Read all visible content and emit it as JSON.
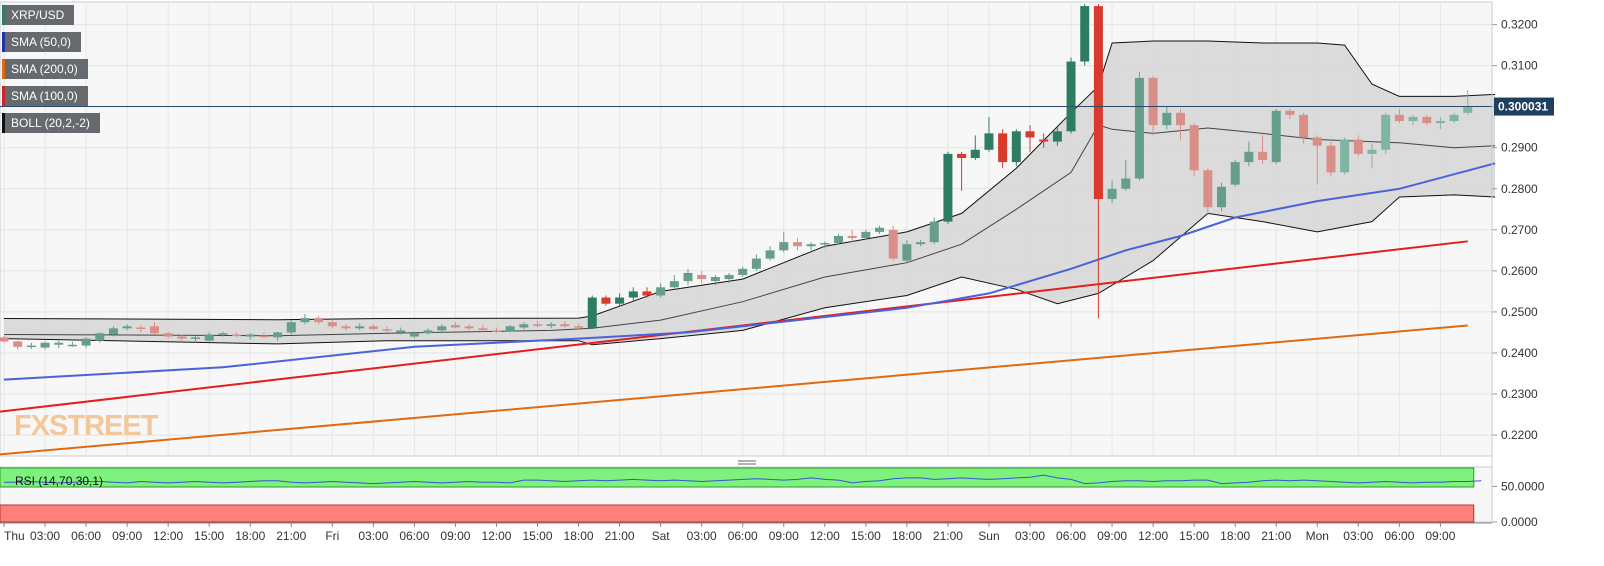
{
  "legend": [
    {
      "label": "XRP/USD",
      "color": "#2e7d63"
    },
    {
      "label": "SMA (50,0)",
      "color": "#2233aa"
    },
    {
      "label": "SMA (200,0)",
      "color": "#e06a10"
    },
    {
      "label": "SMA (100,0)",
      "color": "#d32222"
    },
    {
      "label": "BOLL (20,2,-2)",
      "color": "#111111"
    }
  ],
  "rsi_panel": {
    "label": "RSI (14,70,30,1)",
    "axis_labels": [
      "50.0000",
      "0.0000"
    ],
    "values": [
      56,
      56,
      57,
      56,
      55,
      56,
      57,
      57,
      56,
      55,
      57,
      56,
      55,
      56,
      57,
      56,
      55,
      56,
      57,
      58,
      58,
      56,
      55,
      56,
      57,
      56,
      55,
      54,
      55,
      56,
      57,
      56,
      55,
      56,
      57,
      56,
      56,
      55,
      59,
      59,
      58,
      57,
      58,
      59,
      58,
      59,
      60,
      59,
      58,
      59,
      58,
      57,
      58,
      59,
      60,
      61,
      60,
      59,
      60,
      62,
      60,
      59,
      55,
      57,
      58,
      61,
      62,
      62,
      60,
      61,
      62,
      61,
      60,
      61,
      62,
      63,
      66,
      62,
      60,
      54,
      55,
      57,
      58,
      58,
      57,
      58,
      58,
      59,
      59,
      54,
      55,
      56,
      58,
      59,
      58,
      59,
      58,
      57,
      56,
      55,
      56,
      57,
      56,
      55,
      56,
      56,
      57,
      57,
      58
    ]
  },
  "chart_data": {
    "type": "candlestick",
    "title": "XRP/USD",
    "source_watermark": "FXSTREET",
    "y_ticks": [
      "0.3200",
      "0.3100",
      "0.3000",
      "0.2900",
      "0.2800",
      "0.2700",
      "0.2600",
      "0.2500",
      "0.2400",
      "0.2300",
      "0.2200"
    ],
    "ylim": [
      0.2149,
      0.3255
    ],
    "x_tick_labels": [
      "Thu",
      "03:00",
      "06:00",
      "09:00",
      "12:00",
      "15:00",
      "18:00",
      "21:00",
      "Fri",
      "03:00",
      "06:00",
      "09:00",
      "12:00",
      "15:00",
      "18:00",
      "21:00",
      "Sat",
      "03:00",
      "06:00",
      "09:00",
      "12:00",
      "15:00",
      "18:00",
      "21:00",
      "Sun",
      "03:00",
      "06:00",
      "09:00",
      "12:00",
      "15:00",
      "18:00",
      "21:00",
      "Mon",
      "03:00",
      "06:00",
      "09:00"
    ],
    "x_tick_interval_bars": 3,
    "bar_interval": "1 hour",
    "current_price": {
      "label": "0.300031",
      "value": 0.300031
    },
    "candles": [
      {
        "open": 0.2438,
        "high": 0.2442,
        "low": 0.2425,
        "close": 0.2428
      },
      {
        "open": 0.2428,
        "high": 0.243,
        "low": 0.2408,
        "close": 0.2415
      },
      {
        "open": 0.2415,
        "high": 0.2425,
        "low": 0.241,
        "close": 0.2418
      },
      {
        "open": 0.2413,
        "high": 0.2428,
        "low": 0.2408,
        "close": 0.2425
      },
      {
        "open": 0.242,
        "high": 0.243,
        "low": 0.2412,
        "close": 0.2425
      },
      {
        "open": 0.2418,
        "high": 0.2428,
        "low": 0.2415,
        "close": 0.242
      },
      {
        "open": 0.2418,
        "high": 0.2438,
        "low": 0.2412,
        "close": 0.2435
      },
      {
        "open": 0.243,
        "high": 0.245,
        "low": 0.2425,
        "close": 0.2448
      },
      {
        "open": 0.2445,
        "high": 0.2465,
        "low": 0.244,
        "close": 0.246
      },
      {
        "open": 0.246,
        "high": 0.247,
        "low": 0.2455,
        "close": 0.2465
      },
      {
        "open": 0.2462,
        "high": 0.2468,
        "low": 0.245,
        "close": 0.246
      },
      {
        "open": 0.2465,
        "high": 0.2475,
        "low": 0.2445,
        "close": 0.2448
      },
      {
        "open": 0.2448,
        "high": 0.2452,
        "low": 0.2435,
        "close": 0.244
      },
      {
        "open": 0.244,
        "high": 0.2445,
        "low": 0.243,
        "close": 0.2435
      },
      {
        "open": 0.2435,
        "high": 0.2442,
        "low": 0.2425,
        "close": 0.2438
      },
      {
        "open": 0.243,
        "high": 0.245,
        "low": 0.2428,
        "close": 0.2445
      },
      {
        "open": 0.2445,
        "high": 0.2452,
        "low": 0.244,
        "close": 0.2448
      },
      {
        "open": 0.2445,
        "high": 0.245,
        "low": 0.2438,
        "close": 0.2442
      },
      {
        "open": 0.244,
        "high": 0.2448,
        "low": 0.2432,
        "close": 0.2445
      },
      {
        "open": 0.2442,
        "high": 0.245,
        "low": 0.2436,
        "close": 0.244
      },
      {
        "open": 0.2438,
        "high": 0.2452,
        "low": 0.243,
        "close": 0.245
      },
      {
        "open": 0.245,
        "high": 0.248,
        "low": 0.2445,
        "close": 0.2475
      },
      {
        "open": 0.2475,
        "high": 0.2495,
        "low": 0.247,
        "close": 0.2485
      },
      {
        "open": 0.2485,
        "high": 0.249,
        "low": 0.247,
        "close": 0.2475
      },
      {
        "open": 0.2475,
        "high": 0.2482,
        "low": 0.246,
        "close": 0.2465
      },
      {
        "open": 0.2465,
        "high": 0.247,
        "low": 0.2455,
        "close": 0.246
      },
      {
        "open": 0.246,
        "high": 0.2472,
        "low": 0.2455,
        "close": 0.2465
      },
      {
        "open": 0.2465,
        "high": 0.247,
        "low": 0.2455,
        "close": 0.2458
      },
      {
        "open": 0.2458,
        "high": 0.2465,
        "low": 0.245,
        "close": 0.2455
      },
      {
        "open": 0.245,
        "high": 0.2462,
        "low": 0.2445,
        "close": 0.2455
      },
      {
        "open": 0.244,
        "high": 0.2452,
        "low": 0.2435,
        "close": 0.2448
      },
      {
        "open": 0.2448,
        "high": 0.246,
        "low": 0.2445,
        "close": 0.2455
      },
      {
        "open": 0.2455,
        "high": 0.247,
        "low": 0.245,
        "close": 0.2465
      },
      {
        "open": 0.2468,
        "high": 0.2475,
        "low": 0.246,
        "close": 0.2462
      },
      {
        "open": 0.2465,
        "high": 0.247,
        "low": 0.2455,
        "close": 0.246
      },
      {
        "open": 0.246,
        "high": 0.2468,
        "low": 0.2452,
        "close": 0.2456
      },
      {
        "open": 0.2455,
        "high": 0.2462,
        "low": 0.2448,
        "close": 0.2452
      },
      {
        "open": 0.2452,
        "high": 0.2468,
        "low": 0.245,
        "close": 0.2465
      },
      {
        "open": 0.2462,
        "high": 0.2475,
        "low": 0.2458,
        "close": 0.247
      },
      {
        "open": 0.247,
        "high": 0.2478,
        "low": 0.2462,
        "close": 0.2466
      },
      {
        "open": 0.2466,
        "high": 0.2475,
        "low": 0.246,
        "close": 0.247
      },
      {
        "open": 0.247,
        "high": 0.2478,
        "low": 0.2462,
        "close": 0.2465
      },
      {
        "open": 0.2465,
        "high": 0.2472,
        "low": 0.2458,
        "close": 0.2462
      },
      {
        "open": 0.246,
        "high": 0.254,
        "low": 0.2458,
        "close": 0.2535
      },
      {
        "open": 0.2535,
        "high": 0.254,
        "low": 0.2515,
        "close": 0.252
      },
      {
        "open": 0.252,
        "high": 0.2545,
        "low": 0.2515,
        "close": 0.2535
      },
      {
        "open": 0.2535,
        "high": 0.256,
        "low": 0.2525,
        "close": 0.255
      },
      {
        "open": 0.255,
        "high": 0.256,
        "low": 0.2535,
        "close": 0.254
      },
      {
        "open": 0.254,
        "high": 0.257,
        "low": 0.2535,
        "close": 0.256
      },
      {
        "open": 0.256,
        "high": 0.259,
        "low": 0.2555,
        "close": 0.2575
      },
      {
        "open": 0.2575,
        "high": 0.2605,
        "low": 0.2565,
        "close": 0.2595
      },
      {
        "open": 0.259,
        "high": 0.26,
        "low": 0.257,
        "close": 0.258
      },
      {
        "open": 0.2575,
        "high": 0.259,
        "low": 0.2565,
        "close": 0.2585
      },
      {
        "open": 0.258,
        "high": 0.2595,
        "low": 0.257,
        "close": 0.259
      },
      {
        "open": 0.259,
        "high": 0.261,
        "low": 0.2585,
        "close": 0.2605
      },
      {
        "open": 0.2605,
        "high": 0.264,
        "low": 0.26,
        "close": 0.263
      },
      {
        "open": 0.263,
        "high": 0.266,
        "low": 0.2625,
        "close": 0.265
      },
      {
        "open": 0.265,
        "high": 0.2695,
        "low": 0.2645,
        "close": 0.267
      },
      {
        "open": 0.267,
        "high": 0.268,
        "low": 0.265,
        "close": 0.266
      },
      {
        "open": 0.266,
        "high": 0.267,
        "low": 0.265,
        "close": 0.2665
      },
      {
        "open": 0.2665,
        "high": 0.2672,
        "low": 0.2655,
        "close": 0.2668
      },
      {
        "open": 0.2668,
        "high": 0.269,
        "low": 0.2665,
        "close": 0.2685
      },
      {
        "open": 0.2685,
        "high": 0.27,
        "low": 0.267,
        "close": 0.268
      },
      {
        "open": 0.268,
        "high": 0.27,
        "low": 0.2675,
        "close": 0.2695
      },
      {
        "open": 0.2695,
        "high": 0.271,
        "low": 0.269,
        "close": 0.2705
      },
      {
        "open": 0.27,
        "high": 0.271,
        "low": 0.2625,
        "close": 0.263
      },
      {
        "open": 0.2625,
        "high": 0.2675,
        "low": 0.262,
        "close": 0.2665
      },
      {
        "open": 0.2665,
        "high": 0.2675,
        "low": 0.266,
        "close": 0.267
      },
      {
        "open": 0.267,
        "high": 0.273,
        "low": 0.2665,
        "close": 0.272
      },
      {
        "open": 0.272,
        "high": 0.289,
        "low": 0.2715,
        "close": 0.2885
      },
      {
        "open": 0.2885,
        "high": 0.289,
        "low": 0.2795,
        "close": 0.2875
      },
      {
        "open": 0.2875,
        "high": 0.293,
        "low": 0.287,
        "close": 0.2895
      },
      {
        "open": 0.2895,
        "high": 0.2975,
        "low": 0.289,
        "close": 0.2935
      },
      {
        "open": 0.2935,
        "high": 0.2945,
        "low": 0.285,
        "close": 0.2865
      },
      {
        "open": 0.2865,
        "high": 0.2945,
        "low": 0.2855,
        "close": 0.294
      },
      {
        "open": 0.294,
        "high": 0.2955,
        "low": 0.289,
        "close": 0.2925
      },
      {
        "open": 0.292,
        "high": 0.2935,
        "low": 0.29,
        "close": 0.2915
      },
      {
        "open": 0.2915,
        "high": 0.295,
        "low": 0.2905,
        "close": 0.294
      },
      {
        "open": 0.294,
        "high": 0.312,
        "low": 0.2935,
        "close": 0.311
      },
      {
        "open": 0.311,
        "high": 0.325,
        "low": 0.31,
        "close": 0.3245
      },
      {
        "open": 0.3245,
        "high": 0.325,
        "low": 0.2485,
        "close": 0.2775
      },
      {
        "open": 0.2775,
        "high": 0.282,
        "low": 0.2765,
        "close": 0.28
      },
      {
        "open": 0.28,
        "high": 0.287,
        "low": 0.2795,
        "close": 0.2825
      },
      {
        "open": 0.2825,
        "high": 0.3085,
        "low": 0.282,
        "close": 0.307
      },
      {
        "open": 0.307,
        "high": 0.3075,
        "low": 0.293,
        "close": 0.2955
      },
      {
        "open": 0.2955,
        "high": 0.3,
        "low": 0.2945,
        "close": 0.2985
      },
      {
        "open": 0.2985,
        "high": 0.2995,
        "low": 0.292,
        "close": 0.2955
      },
      {
        "open": 0.2955,
        "high": 0.296,
        "low": 0.283,
        "close": 0.2845
      },
      {
        "open": 0.2845,
        "high": 0.285,
        "low": 0.2735,
        "close": 0.2755
      },
      {
        "open": 0.2755,
        "high": 0.2815,
        "low": 0.2745,
        "close": 0.2805
      },
      {
        "open": 0.281,
        "high": 0.287,
        "low": 0.2805,
        "close": 0.2865
      },
      {
        "open": 0.2865,
        "high": 0.2915,
        "low": 0.2855,
        "close": 0.289
      },
      {
        "open": 0.289,
        "high": 0.293,
        "low": 0.286,
        "close": 0.287
      },
      {
        "open": 0.2865,
        "high": 0.2995,
        "low": 0.286,
        "close": 0.299
      },
      {
        "open": 0.299,
        "high": 0.2995,
        "low": 0.297,
        "close": 0.298
      },
      {
        "open": 0.298,
        "high": 0.2985,
        "low": 0.291,
        "close": 0.2925
      },
      {
        "open": 0.2925,
        "high": 0.293,
        "low": 0.281,
        "close": 0.2905
      },
      {
        "open": 0.2905,
        "high": 0.2915,
        "low": 0.283,
        "close": 0.284
      },
      {
        "open": 0.284,
        "high": 0.2925,
        "low": 0.2835,
        "close": 0.292
      },
      {
        "open": 0.292,
        "high": 0.293,
        "low": 0.288,
        "close": 0.2885
      },
      {
        "open": 0.2885,
        "high": 0.291,
        "low": 0.285,
        "close": 0.2895
      },
      {
        "open": 0.2895,
        "high": 0.2985,
        "low": 0.2885,
        "close": 0.298
      },
      {
        "open": 0.298,
        "high": 0.2995,
        "low": 0.296,
        "close": 0.2965
      },
      {
        "open": 0.2965,
        "high": 0.298,
        "low": 0.2955,
        "close": 0.2975
      },
      {
        "open": 0.2975,
        "high": 0.298,
        "low": 0.2955,
        "close": 0.296
      },
      {
        "open": 0.296,
        "high": 0.2975,
        "low": 0.2945,
        "close": 0.2965
      },
      {
        "open": 0.2965,
        "high": 0.2985,
        "low": 0.296,
        "close": 0.298
      },
      {
        "open": 0.2985,
        "high": 0.304,
        "low": 0.298,
        "close": 0.3
      }
    ],
    "sma_50": {
      "start": 0.2335,
      "end": 0.2862,
      "points": [
        [
          0,
          0.2335
        ],
        [
          16,
          0.2365
        ],
        [
          30,
          0.2415
        ],
        [
          42,
          0.2435
        ],
        [
          50,
          0.245
        ],
        [
          58,
          0.248
        ],
        [
          66,
          0.251
        ],
        [
          72,
          0.2545
        ],
        [
          78,
          0.2605
        ],
        [
          82,
          0.265
        ],
        [
          86,
          0.2685
        ],
        [
          90,
          0.273
        ],
        [
          96,
          0.277
        ],
        [
          102,
          0.28
        ],
        [
          109,
          0.2862
        ]
      ]
    },
    "sma_100": {
      "start": 0.2257,
      "end": 0.2672
    },
    "sma_200": {
      "start": 0.2153,
      "end": 0.2467
    },
    "bollinger": {
      "middle": [
        [
          0,
          0.2445
        ],
        [
          20,
          0.2442
        ],
        [
          28,
          0.2448
        ],
        [
          40,
          0.2455
        ],
        [
          43,
          0.246
        ],
        [
          48,
          0.248
        ],
        [
          54,
          0.2525
        ],
        [
          60,
          0.2585
        ],
        [
          66,
          0.262
        ],
        [
          70,
          0.2665
        ],
        [
          74,
          0.275
        ],
        [
          78,
          0.284
        ],
        [
          80,
          0.2955
        ],
        [
          81,
          0.2945
        ],
        [
          84,
          0.2935
        ],
        [
          88,
          0.2948
        ],
        [
          92,
          0.2935
        ],
        [
          96,
          0.292
        ],
        [
          102,
          0.2912
        ],
        [
          106,
          0.29
        ],
        [
          109,
          0.2905
        ]
      ],
      "upper": [
        [
          0,
          0.2484
        ],
        [
          20,
          0.2481
        ],
        [
          28,
          0.2484
        ],
        [
          42,
          0.2485
        ],
        [
          43,
          0.249
        ],
        [
          48,
          0.255
        ],
        [
          54,
          0.258
        ],
        [
          60,
          0.266
        ],
        [
          66,
          0.2695
        ],
        [
          70,
          0.274
        ],
        [
          74,
          0.285
        ],
        [
          78,
          0.2985
        ],
        [
          80,
          0.305
        ],
        [
          81,
          0.3155
        ],
        [
          84,
          0.316
        ],
        [
          88,
          0.316
        ],
        [
          92,
          0.3155
        ],
        [
          96,
          0.3155
        ],
        [
          98,
          0.315
        ],
        [
          100,
          0.3055
        ],
        [
          102,
          0.3025
        ],
        [
          106,
          0.3025
        ],
        [
          109,
          0.303
        ]
      ],
      "lower": [
        [
          0,
          0.2435
        ],
        [
          20,
          0.2422
        ],
        [
          28,
          0.243
        ],
        [
          42,
          0.243
        ],
        [
          43,
          0.242
        ],
        [
          48,
          0.2435
        ],
        [
          54,
          0.2455
        ],
        [
          60,
          0.251
        ],
        [
          66,
          0.254
        ],
        [
          70,
          0.2585
        ],
        [
          74,
          0.2555
        ],
        [
          77,
          0.252
        ],
        [
          80,
          0.2545
        ],
        [
          84,
          0.2625
        ],
        [
          88,
          0.274
        ],
        [
          92,
          0.272
        ],
        [
          96,
          0.2695
        ],
        [
          100,
          0.272
        ],
        [
          102,
          0.278
        ],
        [
          106,
          0.2785
        ],
        [
          109,
          0.278
        ]
      ]
    }
  }
}
